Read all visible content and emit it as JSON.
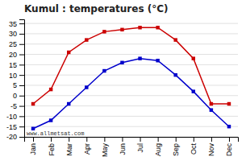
{
  "chart_data": {
    "type": "line",
    "title": "Kumul : temperatures (°C)",
    "categories": [
      "Jan",
      "Feb",
      "Mar",
      "Apr",
      "May",
      "Jun",
      "Jul",
      "Aug",
      "Sep",
      "Oct",
      "Nov",
      "Dec"
    ],
    "series": [
      {
        "color": "#cc0000",
        "marker": "square",
        "values": [
          -4,
          3,
          21,
          27,
          31,
          32,
          33,
          33,
          27,
          18,
          -4,
          -4
        ]
      },
      {
        "color": "#0000cc",
        "marker": "square",
        "values": [
          -16,
          -12,
          -4,
          4,
          12,
          16,
          18,
          17,
          10,
          2,
          -7,
          -15
        ]
      }
    ],
    "ylim": [
      -20,
      37
    ],
    "yticks": [
      -20,
      -15,
      -10,
      -5,
      0,
      5,
      10,
      15,
      20,
      25,
      30,
      35
    ],
    "grid": true,
    "annotations": [
      "www.allmetsat.com"
    ]
  }
}
